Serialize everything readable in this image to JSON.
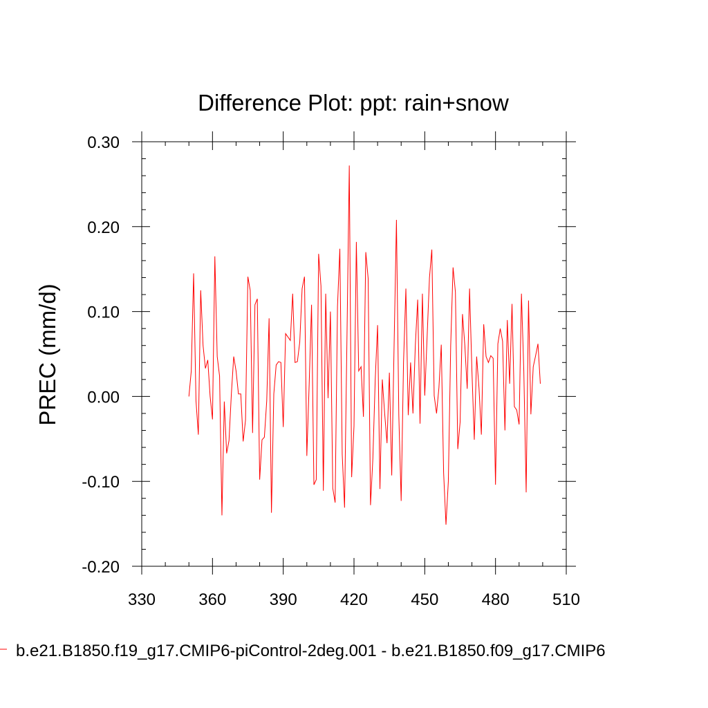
{
  "chart_data": {
    "type": "line",
    "title": "Difference Plot: ppt: rain+snow",
    "xlabel": "",
    "ylabel": "PREC  (mm/d)",
    "xlim": [
      330,
      510
    ],
    "ylim": [
      -0.2,
      0.3
    ],
    "x_ticks": [
      330,
      360,
      390,
      420,
      450,
      480,
      510
    ],
    "y_ticks": [
      -0.2,
      -0.1,
      0.0,
      0.1,
      0.2,
      0.3
    ],
    "x_tick_labels": [
      "330",
      "360",
      "390",
      "420",
      "450",
      "480",
      "510"
    ],
    "y_tick_labels": [
      "-0.20",
      "-0.10",
      "0.00",
      "0.10",
      "0.20",
      "0.30"
    ],
    "legend_position": "bottom",
    "series": [
      {
        "name": "b.e21.B1850.f19_g17.CMIP6-piControl-2deg.001 - b.e21.B1850.f09_g17.CMIP6",
        "color": "#ff0000",
        "x_start": 350,
        "x_step": 1,
        "values": [
          0.0,
          0.03,
          0.145,
          -0.005,
          -0.045,
          0.125,
          0.06,
          0.033,
          0.043,
          0.0,
          -0.027,
          0.165,
          0.047,
          0.024,
          -0.14,
          -0.006,
          -0.067,
          -0.052,
          0.003,
          0.047,
          0.03,
          0.003,
          0.003,
          -0.053,
          -0.028,
          0.141,
          0.125,
          -0.043,
          0.108,
          0.115,
          -0.098,
          -0.051,
          -0.048,
          -0.005,
          0.092,
          -0.137,
          0.003,
          0.037,
          0.041,
          0.04,
          -0.036,
          0.074,
          0.07,
          0.066,
          0.121,
          0.04,
          0.041,
          0.064,
          0.127,
          0.141,
          -0.07,
          0.015,
          0.108,
          -0.104,
          -0.098,
          0.168,
          0.13,
          -0.111,
          0.121,
          -0.002,
          0.1,
          -0.108,
          -0.125,
          0.106,
          0.174,
          -0.068,
          -0.131,
          0.066,
          0.272,
          -0.095,
          -0.035,
          0.182,
          0.03,
          0.035,
          -0.024,
          0.17,
          0.139,
          -0.128,
          -0.073,
          0.02,
          0.084,
          -0.109,
          0.02,
          -0.02,
          -0.055,
          0.028,
          -0.093,
          0.06,
          0.208,
          -0.022,
          -0.123,
          0.04,
          0.127,
          -0.022,
          0.04,
          -0.02,
          0.06,
          0.114,
          -0.032,
          0.121,
          0.001,
          0.07,
          0.14,
          0.173,
          0.001,
          -0.02,
          0.01,
          0.061,
          -0.09,
          -0.151,
          -0.1,
          0.06,
          0.152,
          0.123,
          -0.062,
          -0.03,
          0.097,
          0.06,
          0.009,
          0.127,
          0.03,
          -0.051,
          0.047,
          0.01,
          -0.045,
          0.085,
          0.047,
          0.04,
          0.048,
          0.045,
          -0.104,
          0.062,
          0.08,
          0.065,
          -0.04,
          0.09,
          0.015,
          0.109,
          -0.012,
          -0.016,
          -0.033,
          0.121,
          0.03,
          -0.113,
          0.113,
          -0.021,
          0.035,
          0.048,
          0.062,
          0.015
        ]
      }
    ]
  }
}
